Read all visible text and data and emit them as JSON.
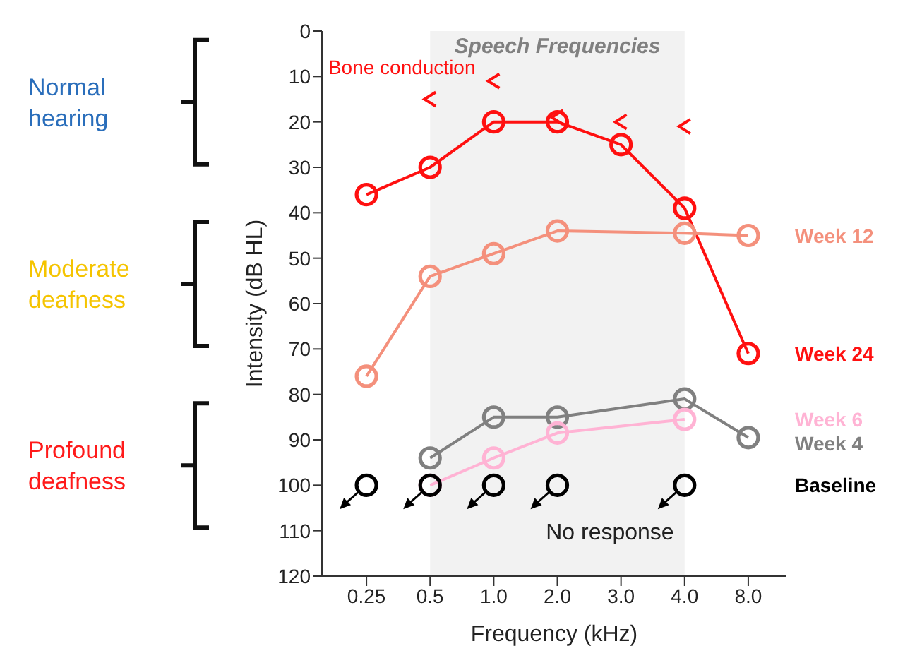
{
  "chart_data": {
    "type": "line",
    "xlabel": "Frequency (kHz)",
    "ylabel": "Intensity (dB HL)",
    "categories": [
      "0.25",
      "0.5",
      "1.0",
      "2.0",
      "3.0",
      "4.0",
      "8.0"
    ],
    "series": [
      {
        "name": "Week 24",
        "color": "#ff1010",
        "marker": "circle",
        "values": [
          36,
          30,
          20,
          20,
          25,
          39,
          71
        ]
      },
      {
        "name": "Week 12",
        "color": "#f4907c",
        "marker": "circle",
        "values": [
          76,
          54,
          49,
          44,
          null,
          44.5,
          45
        ]
      },
      {
        "name": "Week 4",
        "color": "#808080",
        "marker": "circle",
        "values": [
          null,
          94,
          85,
          85,
          null,
          81,
          89.5
        ]
      },
      {
        "name": "Week 6",
        "color": "#ffb3d4",
        "marker": "circle",
        "values": [
          null,
          100,
          94,
          88.5,
          null,
          85.5,
          null
        ]
      },
      {
        "name": "Baseline",
        "type": "scatter",
        "color": "#000000",
        "marker": "circle",
        "values": [
          100,
          100,
          100,
          100,
          null,
          100,
          null
        ]
      },
      {
        "name": "Bone conduction",
        "type": "scatter",
        "color": "#ff1010",
        "values": [
          null,
          15,
          11,
          19,
          20,
          21,
          null
        ]
      }
    ],
    "ylim": [
      120,
      0
    ],
    "yticks": [
      0,
      10,
      20,
      30,
      40,
      50,
      60,
      70,
      80,
      90,
      100,
      110,
      120
    ],
    "bands": [
      {
        "axis": "x",
        "from": "0.5",
        "to": "4.0",
        "label": "Speech Frequencies",
        "color": "#f2f2f2"
      }
    ],
    "annotations": [
      "Normal hearing",
      "Moderate deafness",
      "Profound deafness",
      "No response"
    ]
  }
}
